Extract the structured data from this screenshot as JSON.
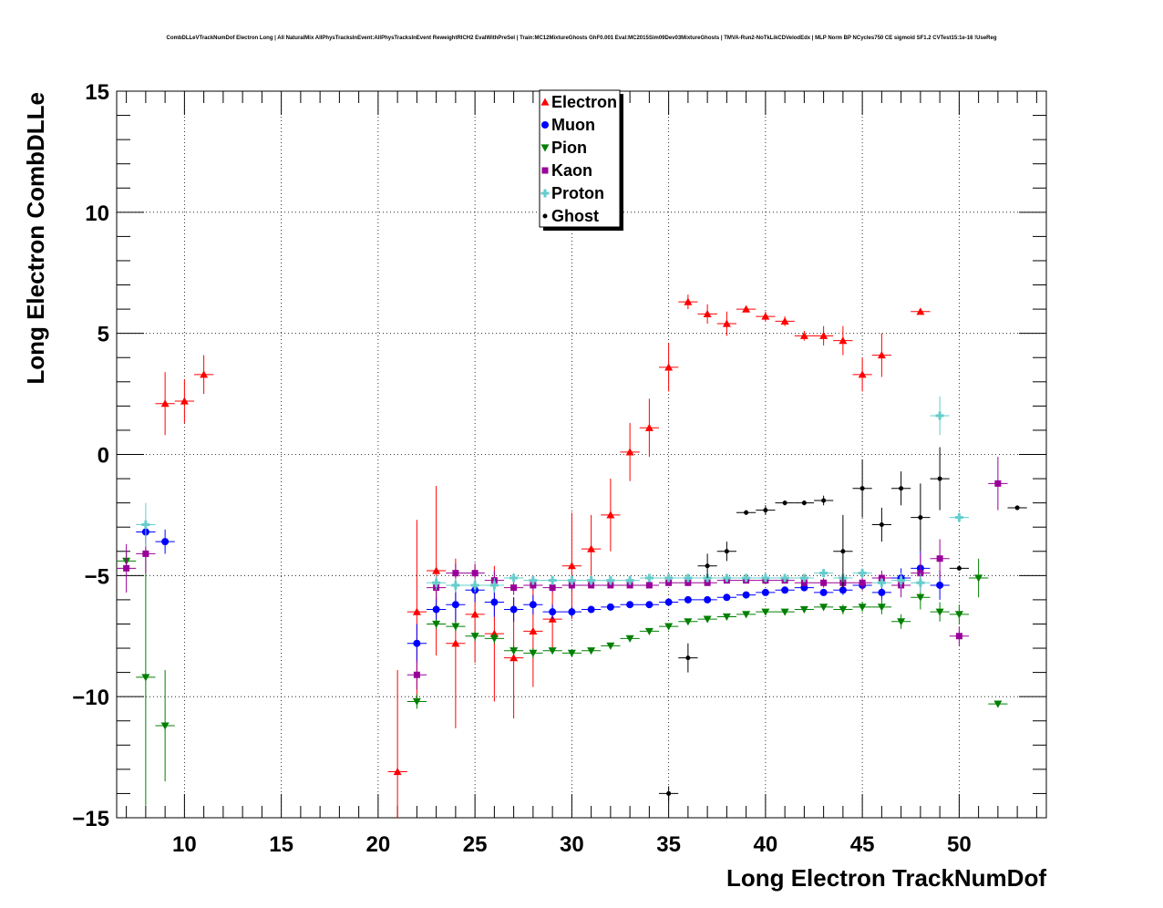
{
  "chart_data": {
    "type": "scatter",
    "title": "CombDLLeVTrackNumDof Electron Long | All NaturalMix AllPhysTracksInEvent:AllPhysTracksInEvent ReweightRICH2 EvalWithPreSel | Train:MC12MixtureGhosts GhF0.001 Eval:MC2015Sim09Dev03MixtureGhosts | TMVA-Run2-NoTkLikCDVelodEdx | MLP Norm BP NCycles750 CE sigmoid SF1.2 CVTest15:1e-16 !UseReg",
    "xlabel": "Long Electron TrackNumDof",
    "ylabel": "Long Electron CombDLLe",
    "xlim": [
      6.5,
      54.5
    ],
    "ylim": [
      -15,
      15
    ],
    "xticks": [
      10,
      15,
      20,
      25,
      30,
      35,
      40,
      45,
      50
    ],
    "yticks": [
      -15,
      -10,
      -5,
      0,
      5,
      10,
      15
    ],
    "xtick_labels": [
      "10",
      "15",
      "20",
      "25",
      "30",
      "35",
      "40",
      "45",
      "50"
    ],
    "ytick_labels": [
      "−15",
      "−10",
      "−5",
      "0",
      "5",
      "10",
      "15"
    ],
    "grid": true,
    "legend_position": "top-center",
    "series": [
      {
        "name": "Electron",
        "color": "#ff0000",
        "marker": "triangle-up",
        "points": [
          {
            "x": 9,
            "y": 2.1,
            "err": 1.3
          },
          {
            "x": 10,
            "y": 2.2,
            "err": 0.9
          },
          {
            "x": 11,
            "y": 3.3,
            "err": 0.8
          },
          {
            "x": 21,
            "y": -13.1,
            "err": 4.2
          },
          {
            "x": 22,
            "y": -6.5,
            "err": 3.8
          },
          {
            "x": 23,
            "y": -4.8,
            "err": 3.5
          },
          {
            "x": 24,
            "y": -7.8,
            "err": 3.5
          },
          {
            "x": 25,
            "y": -6.6,
            "err": 2.0
          },
          {
            "x": 26,
            "y": -7.4,
            "err": 2.8
          },
          {
            "x": 27,
            "y": -8.4,
            "err": 2.5
          },
          {
            "x": 28,
            "y": -7.3,
            "err": 2.3
          },
          {
            "x": 29,
            "y": -6.8,
            "err": 1.3
          },
          {
            "x": 30,
            "y": -4.6,
            "err": 2.2
          },
          {
            "x": 31,
            "y": -3.9,
            "err": 1.4
          },
          {
            "x": 32,
            "y": -2.5,
            "err": 1.5
          },
          {
            "x": 33,
            "y": 0.1,
            "err": 1.2
          },
          {
            "x": 34,
            "y": 1.1,
            "err": 1.2
          },
          {
            "x": 35,
            "y": 3.6,
            "err": 1.0
          },
          {
            "x": 36,
            "y": 6.3,
            "err": 0.3
          },
          {
            "x": 37,
            "y": 5.8,
            "err": 0.4
          },
          {
            "x": 38,
            "y": 5.4,
            "err": 0.5
          },
          {
            "x": 39,
            "y": 6.0,
            "err": 0.1
          },
          {
            "x": 40,
            "y": 5.7,
            "err": 0.2
          },
          {
            "x": 41,
            "y": 5.5,
            "err": 0.2
          },
          {
            "x": 42,
            "y": 4.9,
            "err": 0.2
          },
          {
            "x": 43,
            "y": 4.9,
            "err": 0.4
          },
          {
            "x": 44,
            "y": 4.7,
            "err": 0.6
          },
          {
            "x": 45,
            "y": 3.3,
            "err": 0.7
          },
          {
            "x": 46,
            "y": 4.1,
            "err": 0.9
          },
          {
            "x": 48,
            "y": 5.9,
            "err": 0.1
          }
        ]
      },
      {
        "name": "Muon",
        "color": "#0000ff",
        "marker": "circle",
        "points": [
          {
            "x": 8,
            "y": -3.2,
            "err": 0.5
          },
          {
            "x": 9,
            "y": -3.6,
            "err": 0.5
          },
          {
            "x": 22,
            "y": -7.8,
            "err": 0.8
          },
          {
            "x": 23,
            "y": -6.4,
            "err": 0.5
          },
          {
            "x": 24,
            "y": -6.2,
            "err": 0.7
          },
          {
            "x": 25,
            "y": -5.6,
            "err": 0.5
          },
          {
            "x": 26,
            "y": -6.1,
            "err": 0.6
          },
          {
            "x": 27,
            "y": -6.4,
            "err": 0.5
          },
          {
            "x": 28,
            "y": -6.2,
            "err": 0.4
          },
          {
            "x": 29,
            "y": -6.5,
            "err": 0.3
          },
          {
            "x": 30,
            "y": -6.5,
            "err": 0.2
          },
          {
            "x": 31,
            "y": -6.4,
            "err": 0.1
          },
          {
            "x": 32,
            "y": -6.3,
            "err": 0.1
          },
          {
            "x": 33,
            "y": -6.2,
            "err": 0.1
          },
          {
            "x": 34,
            "y": -6.2,
            "err": 0.1
          },
          {
            "x": 35,
            "y": -6.1,
            "err": 0.1
          },
          {
            "x": 36,
            "y": -6.0,
            "err": 0.1
          },
          {
            "x": 37,
            "y": -6.0,
            "err": 0.1
          },
          {
            "x": 38,
            "y": -5.9,
            "err": 0.1
          },
          {
            "x": 39,
            "y": -5.8,
            "err": 0.1
          },
          {
            "x": 40,
            "y": -5.7,
            "err": 0.1
          },
          {
            "x": 41,
            "y": -5.6,
            "err": 0.1
          },
          {
            "x": 42,
            "y": -5.5,
            "err": 0.1
          },
          {
            "x": 43,
            "y": -5.7,
            "err": 0.1
          },
          {
            "x": 44,
            "y": -5.6,
            "err": 0.2
          },
          {
            "x": 45,
            "y": -5.4,
            "err": 0.2
          },
          {
            "x": 46,
            "y": -5.7,
            "err": 0.3
          },
          {
            "x": 47,
            "y": -5.1,
            "err": 0.4
          },
          {
            "x": 48,
            "y": -4.7,
            "err": 0.7
          },
          {
            "x": 49,
            "y": -5.4,
            "err": 0.6
          }
        ]
      },
      {
        "name": "Pion",
        "color": "#008000",
        "marker": "triangle-down",
        "points": [
          {
            "x": 7,
            "y": -4.4,
            "err": 0.4
          },
          {
            "x": 8,
            "y": -9.2,
            "err": 5.3
          },
          {
            "x": 9,
            "y": -11.2,
            "err": 2.3
          },
          {
            "x": 22,
            "y": -10.2,
            "err": 0.3
          },
          {
            "x": 23,
            "y": -7.0,
            "err": 0.2
          },
          {
            "x": 24,
            "y": -7.1,
            "err": 0.2
          },
          {
            "x": 25,
            "y": -7.5,
            "err": 0.2
          },
          {
            "x": 26,
            "y": -7.6,
            "err": 0.2
          },
          {
            "x": 27,
            "y": -8.1,
            "err": 0.2
          },
          {
            "x": 28,
            "y": -8.2,
            "err": 0.2
          },
          {
            "x": 29,
            "y": -8.1,
            "err": 0.1
          },
          {
            "x": 30,
            "y": -8.2,
            "err": 0.1
          },
          {
            "x": 31,
            "y": -8.1,
            "err": 0.1
          },
          {
            "x": 32,
            "y": -7.9,
            "err": 0.1
          },
          {
            "x": 33,
            "y": -7.6,
            "err": 0.1
          },
          {
            "x": 34,
            "y": -7.3,
            "err": 0.1
          },
          {
            "x": 35,
            "y": -7.1,
            "err": 0.1
          },
          {
            "x": 36,
            "y": -6.9,
            "err": 0.1
          },
          {
            "x": 37,
            "y": -6.8,
            "err": 0.1
          },
          {
            "x": 38,
            "y": -6.7,
            "err": 0.1
          },
          {
            "x": 39,
            "y": -6.6,
            "err": 0.1
          },
          {
            "x": 40,
            "y": -6.5,
            "err": 0.1
          },
          {
            "x": 41,
            "y": -6.5,
            "err": 0.1
          },
          {
            "x": 42,
            "y": -6.4,
            "err": 0.1
          },
          {
            "x": 43,
            "y": -6.3,
            "err": 0.1
          },
          {
            "x": 44,
            "y": -6.4,
            "err": 0.2
          },
          {
            "x": 45,
            "y": -6.3,
            "err": 0.2
          },
          {
            "x": 46,
            "y": -6.3,
            "err": 0.3
          },
          {
            "x": 47,
            "y": -6.9,
            "err": 0.3
          },
          {
            "x": 48,
            "y": -5.9,
            "err": 0.5
          },
          {
            "x": 49,
            "y": -6.5,
            "err": 0.4
          },
          {
            "x": 50,
            "y": -6.6,
            "err": 0.4
          },
          {
            "x": 51,
            "y": -5.1,
            "err": 0.8
          },
          {
            "x": 52,
            "y": -10.3,
            "err": 0.1
          }
        ]
      },
      {
        "name": "Kaon",
        "color": "#990099",
        "marker": "square",
        "points": [
          {
            "x": 7,
            "y": -4.7,
            "err": 1.0
          },
          {
            "x": 8,
            "y": -4.1,
            "err": 0.8
          },
          {
            "x": 22,
            "y": -9.1,
            "err": 0.6
          },
          {
            "x": 23,
            "y": -5.5,
            "err": 0.5
          },
          {
            "x": 24,
            "y": -4.9,
            "err": 0.4
          },
          {
            "x": 25,
            "y": -4.9,
            "err": 0.4
          },
          {
            "x": 26,
            "y": -5.2,
            "err": 0.4
          },
          {
            "x": 27,
            "y": -5.5,
            "err": 0.3
          },
          {
            "x": 28,
            "y": -5.4,
            "err": 0.2
          },
          {
            "x": 29,
            "y": -5.5,
            "err": 0.2
          },
          {
            "x": 30,
            "y": -5.4,
            "err": 0.2
          },
          {
            "x": 31,
            "y": -5.4,
            "err": 0.1
          },
          {
            "x": 32,
            "y": -5.4,
            "err": 0.1
          },
          {
            "x": 33,
            "y": -5.4,
            "err": 0.1
          },
          {
            "x": 34,
            "y": -5.4,
            "err": 0.1
          },
          {
            "x": 35,
            "y": -5.3,
            "err": 0.1
          },
          {
            "x": 36,
            "y": -5.3,
            "err": 0.1
          },
          {
            "x": 37,
            "y": -5.3,
            "err": 0.1
          },
          {
            "x": 38,
            "y": -5.2,
            "err": 0.1
          },
          {
            "x": 39,
            "y": -5.2,
            "err": 0.1
          },
          {
            "x": 40,
            "y": -5.2,
            "err": 0.1
          },
          {
            "x": 41,
            "y": -5.2,
            "err": 0.1
          },
          {
            "x": 42,
            "y": -5.3,
            "err": 0.1
          },
          {
            "x": 43,
            "y": -5.3,
            "err": 0.2
          },
          {
            "x": 44,
            "y": -5.3,
            "err": 0.2
          },
          {
            "x": 45,
            "y": -5.3,
            "err": 0.3
          },
          {
            "x": 46,
            "y": -5.1,
            "err": 0.3
          },
          {
            "x": 47,
            "y": -5.4,
            "err": 0.5
          },
          {
            "x": 48,
            "y": -4.9,
            "err": 0.8
          },
          {
            "x": 49,
            "y": -4.3,
            "err": 0.8
          },
          {
            "x": 50,
            "y": -7.5,
            "err": 0.4
          },
          {
            "x": 52,
            "y": -1.2,
            "err": 1.1
          }
        ]
      },
      {
        "name": "Proton",
        "color": "#66cccc",
        "marker": "cross",
        "points": [
          {
            "x": 8,
            "y": -2.9,
            "err": 0.9
          },
          {
            "x": 23,
            "y": -5.3,
            "err": 0.3
          },
          {
            "x": 24,
            "y": -5.4,
            "err": 0.3
          },
          {
            "x": 25,
            "y": -5.4,
            "err": 0.3
          },
          {
            "x": 26,
            "y": -5.4,
            "err": 0.3
          },
          {
            "x": 27,
            "y": -5.1,
            "err": 0.2
          },
          {
            "x": 28,
            "y": -5.2,
            "err": 0.2
          },
          {
            "x": 29,
            "y": -5.2,
            "err": 0.2
          },
          {
            "x": 30,
            "y": -5.2,
            "err": 0.2
          },
          {
            "x": 31,
            "y": -5.2,
            "err": 0.2
          },
          {
            "x": 32,
            "y": -5.2,
            "err": 0.2
          },
          {
            "x": 33,
            "y": -5.2,
            "err": 0.2
          },
          {
            "x": 34,
            "y": -5.1,
            "err": 0.1
          },
          {
            "x": 35,
            "y": -5.1,
            "err": 0.1
          },
          {
            "x": 36,
            "y": -5.1,
            "err": 0.1
          },
          {
            "x": 37,
            "y": -5.1,
            "err": 0.1
          },
          {
            "x": 38,
            "y": -5.1,
            "err": 0.1
          },
          {
            "x": 39,
            "y": -5.1,
            "err": 0.1
          },
          {
            "x": 40,
            "y": -5.1,
            "err": 0.1
          },
          {
            "x": 41,
            "y": -5.1,
            "err": 0.1
          },
          {
            "x": 42,
            "y": -5.1,
            "err": 0.1
          },
          {
            "x": 43,
            "y": -4.9,
            "err": 0.1
          },
          {
            "x": 44,
            "y": -5.1,
            "err": 0.1
          },
          {
            "x": 45,
            "y": -4.9,
            "err": 0.2
          },
          {
            "x": 46,
            "y": -5.3,
            "err": 0.2
          },
          {
            "x": 47,
            "y": -5.2,
            "err": 0.3
          },
          {
            "x": 48,
            "y": -5.3,
            "err": 0.4
          },
          {
            "x": 49,
            "y": 1.6,
            "err": 0.8
          },
          {
            "x": 50,
            "y": -2.6,
            "err": 0.2
          }
        ]
      },
      {
        "name": "Ghost",
        "color": "#000000",
        "marker": "dot",
        "points": [
          {
            "x": 35,
            "y": -14.0,
            "err": 0.3
          },
          {
            "x": 36,
            "y": -8.4,
            "err": 0.6
          },
          {
            "x": 37,
            "y": -4.6,
            "err": 0.5
          },
          {
            "x": 38,
            "y": -4.0,
            "err": 0.4
          },
          {
            "x": 39,
            "y": -2.4,
            "err": 0.1
          },
          {
            "x": 40,
            "y": -2.3,
            "err": 0.2
          },
          {
            "x": 41,
            "y": -2.0,
            "err": 0.1
          },
          {
            "x": 42,
            "y": -2.0,
            "err": 0.1
          },
          {
            "x": 43,
            "y": -1.9,
            "err": 0.2
          },
          {
            "x": 44,
            "y": -4.0,
            "err": 1.5
          },
          {
            "x": 45,
            "y": -1.4,
            "err": 1.2
          },
          {
            "x": 46,
            "y": -2.9,
            "err": 0.7
          },
          {
            "x": 47,
            "y": -1.4,
            "err": 0.7
          },
          {
            "x": 48,
            "y": -2.6,
            "err": 1.4
          },
          {
            "x": 49,
            "y": -1.0,
            "err": 1.3
          },
          {
            "x": 50,
            "y": -4.7,
            "err": 0.1
          },
          {
            "x": 53,
            "y": -2.2,
            "err": 0.1
          }
        ]
      }
    ]
  }
}
